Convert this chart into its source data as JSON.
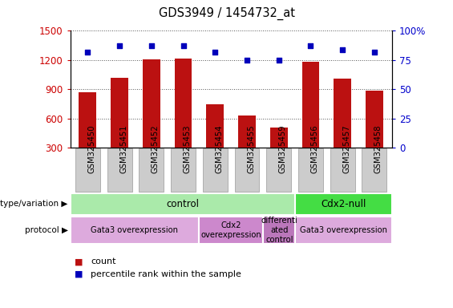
{
  "title": "GDS3949 / 1454732_at",
  "samples": [
    "GSM325450",
    "GSM325451",
    "GSM325452",
    "GSM325453",
    "GSM325454",
    "GSM325455",
    "GSM325459",
    "GSM325456",
    "GSM325457",
    "GSM325458"
  ],
  "counts": [
    870,
    1020,
    1210,
    1215,
    745,
    630,
    510,
    1185,
    1010,
    890
  ],
  "percentile_ranks": [
    82,
    87,
    87,
    87,
    82,
    75,
    75,
    87,
    84,
    82
  ],
  "ylim_left": [
    300,
    1500
  ],
  "ylim_right": [
    0,
    100
  ],
  "yticks_left": [
    300,
    600,
    900,
    1200,
    1500
  ],
  "yticks_right": [
    0,
    25,
    50,
    75,
    100
  ],
  "bar_color": "#bb1111",
  "dot_color": "#0000bb",
  "genotype_groups": [
    {
      "label": "control",
      "start": 0,
      "end": 7,
      "color": "#aaeaaa"
    },
    {
      "label": "Cdx2-null",
      "start": 7,
      "end": 10,
      "color": "#44dd44"
    }
  ],
  "protocol_groups": [
    {
      "label": "Gata3 overexpression",
      "start": 0,
      "end": 4,
      "color": "#ddaadd"
    },
    {
      "label": "Cdx2\noverexpression",
      "start": 4,
      "end": 6,
      "color": "#cc88cc"
    },
    {
      "label": "differenti\nated\ncontrol",
      "start": 6,
      "end": 7,
      "color": "#bb77bb"
    },
    {
      "label": "Gata3 overexpression",
      "start": 7,
      "end": 10,
      "color": "#ddaadd"
    }
  ],
  "left_label_color": "#cc0000",
  "right_label_color": "#0000cc",
  "bar_width": 0.55,
  "sample_box_color": "#cccccc",
  "sample_box_edge": "#999999"
}
